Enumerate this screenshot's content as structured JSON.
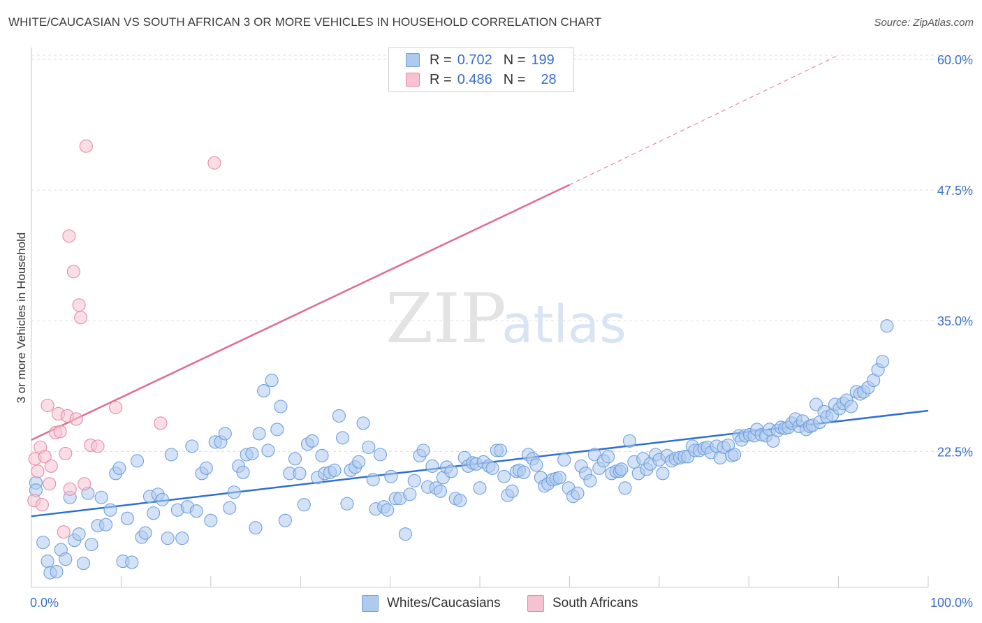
{
  "title": "WHITE/CAUCASIAN VS SOUTH AFRICAN 3 OR MORE VEHICLES IN HOUSEHOLD CORRELATION CHART",
  "source": "Source: ZipAtlas.com",
  "watermark": {
    "zip": "ZIP",
    "atlas": "atlas"
  },
  "colors": {
    "blue_fill": "#aecbef",
    "blue_stroke": "#6f9fdd",
    "blue_line": "#2f6fd0",
    "pink_fill": "#f6c2d1",
    "pink_stroke": "#e68aa6",
    "pink_line": "#e06a92",
    "axis_text": "#3a6fc9",
    "grid": "#dedede"
  },
  "legend": {
    "rows": [
      {
        "r_label": "R =",
        "r_value": "0.702",
        "n_label": "N =",
        "n_value": "199"
      },
      {
        "r_label": "R =",
        "r_value": "0.486",
        "n_label": "N =",
        "n_value": "28"
      }
    ]
  },
  "bottom_legend": {
    "blue": "Whites/Caucasians",
    "pink": "South Africans"
  },
  "chart_data": {
    "type": "scatter",
    "title": "WHITE/CAUCASIAN VS SOUTH AFRICAN 3 OR MORE VEHICLES IN HOUSEHOLD CORRELATION CHART",
    "xlabel": "",
    "ylabel": "3 or more Vehicles in Household",
    "xlim": [
      0,
      100
    ],
    "ylim": [
      9.5,
      62
    ],
    "x_tick_labels": [
      "0.0%",
      "100.0%"
    ],
    "y_ticks": [
      22.5,
      35.0,
      47.5,
      60.0
    ],
    "y_tick_labels": [
      "22.5%",
      "35.0%",
      "47.5%",
      "60.0%"
    ],
    "series": [
      {
        "name": "Whites/Caucasians",
        "color": "#aecbef",
        "trend": {
          "x": [
            0,
            100
          ],
          "y": [
            16.3,
            26.4
          ]
        },
        "points": [
          [
            0.5,
            19.5
          ],
          [
            0.5,
            18.8
          ],
          [
            1.3,
            13.8
          ],
          [
            1.8,
            12.0
          ],
          [
            2.1,
            10.9
          ],
          [
            2.8,
            11.0
          ],
          [
            3.3,
            13.1
          ],
          [
            3.8,
            12.2
          ],
          [
            4.3,
            18.1
          ],
          [
            4.8,
            14.0
          ],
          [
            5.3,
            14.6
          ],
          [
            5.8,
            11.8
          ],
          [
            6.3,
            18.5
          ],
          [
            6.7,
            13.6
          ],
          [
            7.4,
            15.4
          ],
          [
            7.8,
            18.1
          ],
          [
            8.3,
            15.5
          ],
          [
            8.8,
            16.9
          ],
          [
            9.4,
            20.4
          ],
          [
            9.8,
            20.9
          ],
          [
            10.2,
            12.0
          ],
          [
            10.7,
            16.1
          ],
          [
            11.2,
            11.9
          ],
          [
            11.8,
            21.6
          ],
          [
            12.3,
            14.3
          ],
          [
            12.7,
            14.7
          ],
          [
            13.2,
            18.2
          ],
          [
            13.6,
            16.6
          ],
          [
            14.1,
            18.4
          ],
          [
            14.6,
            17.9
          ],
          [
            15.2,
            14.2
          ],
          [
            15.6,
            22.2
          ],
          [
            16.3,
            16.9
          ],
          [
            16.8,
            14.2
          ],
          [
            17.4,
            17.2
          ],
          [
            17.9,
            23.0
          ],
          [
            18.4,
            16.8
          ],
          [
            19.0,
            20.4
          ],
          [
            19.5,
            20.9
          ],
          [
            20.0,
            15.9
          ],
          [
            20.5,
            23.4
          ],
          [
            21.1,
            23.4
          ],
          [
            21.6,
            24.2
          ],
          [
            22.1,
            17.1
          ],
          [
            22.6,
            18.6
          ],
          [
            23.1,
            21.1
          ],
          [
            23.6,
            20.5
          ],
          [
            24.0,
            22.2
          ],
          [
            24.6,
            22.3
          ],
          [
            25.0,
            15.2
          ],
          [
            25.4,
            24.2
          ],
          [
            25.9,
            28.3
          ],
          [
            26.4,
            22.6
          ],
          [
            26.8,
            29.3
          ],
          [
            27.4,
            24.6
          ],
          [
            27.8,
            26.8
          ],
          [
            28.3,
            15.9
          ],
          [
            28.8,
            20.4
          ],
          [
            29.4,
            21.8
          ],
          [
            29.9,
            20.4
          ],
          [
            30.4,
            17.4
          ],
          [
            30.8,
            23.2
          ],
          [
            31.3,
            23.5
          ],
          [
            31.9,
            20.0
          ],
          [
            32.4,
            22.1
          ],
          [
            32.7,
            20.4
          ],
          [
            33.3,
            20.5
          ],
          [
            33.8,
            20.7
          ],
          [
            34.3,
            25.9
          ],
          [
            34.7,
            23.8
          ],
          [
            35.2,
            17.5
          ],
          [
            35.6,
            20.7
          ],
          [
            36.1,
            21.0
          ],
          [
            36.5,
            21.5
          ],
          [
            37.0,
            25.2
          ],
          [
            37.6,
            22.9
          ],
          [
            38.1,
            19.8
          ],
          [
            38.4,
            17.0
          ],
          [
            38.9,
            22.2
          ],
          [
            39.3,
            17.2
          ],
          [
            39.7,
            16.9
          ],
          [
            40.1,
            20.1
          ],
          [
            40.6,
            18.0
          ],
          [
            41.1,
            18.0
          ],
          [
            41.7,
            14.6
          ],
          [
            42.2,
            18.4
          ],
          [
            42.7,
            19.7
          ],
          [
            43.3,
            22.1
          ],
          [
            43.7,
            22.6
          ],
          [
            44.2,
            19.1
          ],
          [
            44.7,
            21.1
          ],
          [
            45.1,
            19.0
          ],
          [
            45.6,
            18.7
          ],
          [
            45.9,
            20.0
          ],
          [
            46.3,
            21.0
          ],
          [
            46.8,
            20.6
          ],
          [
            47.3,
            18.0
          ],
          [
            47.8,
            17.8
          ],
          [
            48.3,
            21.9
          ],
          [
            48.7,
            21.1
          ],
          [
            49.2,
            21.4
          ],
          [
            49.6,
            21.3
          ],
          [
            50.0,
            19.0
          ],
          [
            50.4,
            21.5
          ],
          [
            51.0,
            21.1
          ],
          [
            51.4,
            20.9
          ],
          [
            51.9,
            22.6
          ],
          [
            52.3,
            22.6
          ],
          [
            52.7,
            20.1
          ],
          [
            53.1,
            18.3
          ],
          [
            53.6,
            18.7
          ],
          [
            54.1,
            20.6
          ],
          [
            54.4,
            20.7
          ],
          [
            54.9,
            20.5
          ],
          [
            55.4,
            22.2
          ],
          [
            55.9,
            21.8
          ],
          [
            56.3,
            21.2
          ],
          [
            56.8,
            20.0
          ],
          [
            57.2,
            19.2
          ],
          [
            57.6,
            19.4
          ],
          [
            58.1,
            19.8
          ],
          [
            58.5,
            19.9
          ],
          [
            58.9,
            20.0
          ],
          [
            59.4,
            21.7
          ],
          [
            59.9,
            19.0
          ],
          [
            60.4,
            18.2
          ],
          [
            60.9,
            18.5
          ],
          [
            61.3,
            21.1
          ],
          [
            61.8,
            20.4
          ],
          [
            62.3,
            19.7
          ],
          [
            62.8,
            22.2
          ],
          [
            63.3,
            20.9
          ],
          [
            63.8,
            21.6
          ],
          [
            64.3,
            22.0
          ],
          [
            64.7,
            20.4
          ],
          [
            65.2,
            20.6
          ],
          [
            65.6,
            20.6
          ],
          [
            65.8,
            20.8
          ],
          [
            66.2,
            19.0
          ],
          [
            66.7,
            23.5
          ],
          [
            67.2,
            21.5
          ],
          [
            67.7,
            20.4
          ],
          [
            68.2,
            21.8
          ],
          [
            68.6,
            20.8
          ],
          [
            69.0,
            21.3
          ],
          [
            69.6,
            22.2
          ],
          [
            70.0,
            21.7
          ],
          [
            70.4,
            20.4
          ],
          [
            70.9,
            22.1
          ],
          [
            71.4,
            21.6
          ],
          [
            71.8,
            21.8
          ],
          [
            72.3,
            21.9
          ],
          [
            72.8,
            22.0
          ],
          [
            73.2,
            22.0
          ],
          [
            73.7,
            23.0
          ],
          [
            74.0,
            22.6
          ],
          [
            74.5,
            22.6
          ],
          [
            75.0,
            22.8
          ],
          [
            75.4,
            22.9
          ],
          [
            75.8,
            22.4
          ],
          [
            76.4,
            23.0
          ],
          [
            76.8,
            21.9
          ],
          [
            77.2,
            22.9
          ],
          [
            77.7,
            23.1
          ],
          [
            78.1,
            22.1
          ],
          [
            78.4,
            22.2
          ],
          [
            78.9,
            24.0
          ],
          [
            79.2,
            23.6
          ],
          [
            79.6,
            24.0
          ],
          [
            80.1,
            24.1
          ],
          [
            80.6,
            24.0
          ],
          [
            80.9,
            24.6
          ],
          [
            81.4,
            24.1
          ],
          [
            81.9,
            24.0
          ],
          [
            82.3,
            24.6
          ],
          [
            82.7,
            23.5
          ],
          [
            83.2,
            24.5
          ],
          [
            83.6,
            24.8
          ],
          [
            84.0,
            24.7
          ],
          [
            84.4,
            24.8
          ],
          [
            84.8,
            25.2
          ],
          [
            85.2,
            25.6
          ],
          [
            85.6,
            24.9
          ],
          [
            86.0,
            25.4
          ],
          [
            86.4,
            24.6
          ],
          [
            86.8,
            24.9
          ],
          [
            87.1,
            25.0
          ],
          [
            87.5,
            27.0
          ],
          [
            87.9,
            25.3
          ],
          [
            88.4,
            26.3
          ],
          [
            88.7,
            25.8
          ],
          [
            89.3,
            26.0
          ],
          [
            89.6,
            27.0
          ],
          [
            90.1,
            26.6
          ],
          [
            90.5,
            27.1
          ],
          [
            90.9,
            27.4
          ],
          [
            91.4,
            26.8
          ],
          [
            92.0,
            28.2
          ],
          [
            92.4,
            28.0
          ],
          [
            92.8,
            28.2
          ],
          [
            93.3,
            28.6
          ],
          [
            93.9,
            29.3
          ],
          [
            94.4,
            30.3
          ],
          [
            94.9,
            31.1
          ],
          [
            95.4,
            34.5
          ]
        ]
      },
      {
        "name": "South Africans",
        "color": "#f6c2d1",
        "trend": {
          "x": [
            0,
            60
          ],
          "y": [
            23.6,
            48.0
          ],
          "dashed_to": {
            "x": [
              60,
              90
            ],
            "y": [
              48.0,
              60.4
            ]
          }
        },
        "points": [
          [
            0.3,
            17.8
          ],
          [
            0.4,
            21.8
          ],
          [
            0.7,
            20.6
          ],
          [
            1.0,
            22.9
          ],
          [
            1.2,
            17.4
          ],
          [
            1.5,
            22.0
          ],
          [
            1.8,
            26.9
          ],
          [
            2.0,
            19.4
          ],
          [
            2.2,
            21.1
          ],
          [
            2.7,
            24.3
          ],
          [
            3.0,
            26.1
          ],
          [
            3.2,
            24.4
          ],
          [
            3.6,
            14.8
          ],
          [
            3.8,
            22.3
          ],
          [
            4.0,
            25.9
          ],
          [
            4.2,
            43.1
          ],
          [
            4.3,
            18.9
          ],
          [
            4.7,
            39.7
          ],
          [
            5.0,
            25.6
          ],
          [
            5.3,
            36.5
          ],
          [
            5.5,
            35.3
          ],
          [
            5.9,
            19.4
          ],
          [
            6.1,
            51.7
          ],
          [
            6.6,
            23.1
          ],
          [
            7.4,
            23.0
          ],
          [
            9.4,
            26.7
          ],
          [
            14.4,
            25.2
          ],
          [
            20.4,
            50.1
          ]
        ]
      }
    ]
  }
}
